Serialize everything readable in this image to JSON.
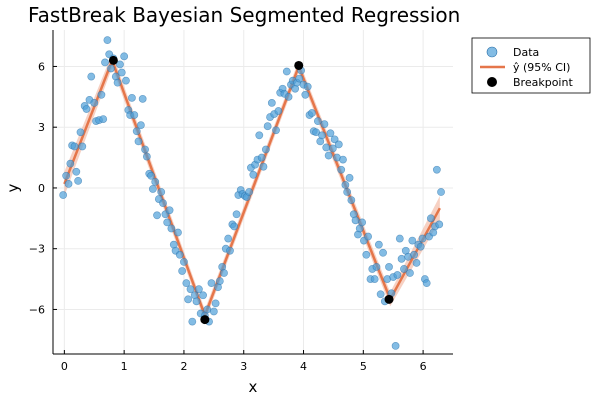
{
  "colors": {
    "data_points": "#4e9fd8",
    "fit_line": "#e5764a",
    "ci_band": "#f0ab91",
    "breakpoints": "#000000",
    "grid": "#ebebeb",
    "axis": "#000000"
  },
  "chart_data": {
    "type": "scatter",
    "title": "FastBreak Bayesian Segmented Regression",
    "xlabel": "x",
    "ylabel": "y",
    "xlim": [
      -0.19,
      6.5
    ],
    "ylim": [
      -8.2,
      7.8
    ],
    "xticks": [
      0,
      1,
      2,
      3,
      4,
      5,
      6
    ],
    "yticks": [
      -6,
      -3,
      0,
      3,
      6
    ],
    "xtick_labels": [
      "0",
      "1",
      "2",
      "3",
      "4",
      "5",
      "6"
    ],
    "ytick_labels": [
      "−6",
      "−3",
      "0",
      "3",
      "6"
    ],
    "grid": true,
    "legend_position": "top-right",
    "legend": {
      "data": "Data",
      "fit": "ŷ (95% CI)",
      "breakpoint": "Breakpoint"
    },
    "scatter": {
      "name": "Data",
      "points": [
        [
          -0.02,
          -0.35
        ],
        [
          0.03,
          0.6
        ],
        [
          0.07,
          0.2
        ],
        [
          0.1,
          1.2
        ],
        [
          0.13,
          2.1
        ],
        [
          0.17,
          2.05
        ],
        [
          0.2,
          0.8
        ],
        [
          0.23,
          0.35
        ],
        [
          0.27,
          2.75
        ],
        [
          0.3,
          2.05
        ],
        [
          0.34,
          4.05
        ],
        [
          0.37,
          3.9
        ],
        [
          0.42,
          4.35
        ],
        [
          0.45,
          5.5
        ],
        [
          0.5,
          4.2
        ],
        [
          0.53,
          3.3
        ],
        [
          0.58,
          3.35
        ],
        [
          0.62,
          4.6
        ],
        [
          0.65,
          3.4
        ],
        [
          0.68,
          6.2
        ],
        [
          0.72,
          7.3
        ],
        [
          0.75,
          6.6
        ],
        [
          0.78,
          5.9
        ],
        [
          0.82,
          6.4
        ],
        [
          0.86,
          5.5
        ],
        [
          0.89,
          5.2
        ],
        [
          0.93,
          6.1
        ],
        [
          0.96,
          5.7
        ],
        [
          1.0,
          6.5
        ],
        [
          1.03,
          5.3
        ],
        [
          1.07,
          3.85
        ],
        [
          1.1,
          3.6
        ],
        [
          1.13,
          4.45
        ],
        [
          1.17,
          3.6
        ],
        [
          1.21,
          2.8
        ],
        [
          1.24,
          2.3
        ],
        [
          1.28,
          3.1
        ],
        [
          1.31,
          4.4
        ],
        [
          1.35,
          1.9
        ],
        [
          1.38,
          1.55
        ],
        [
          1.42,
          0.7
        ],
        [
          1.45,
          0.6
        ],
        [
          1.48,
          -0.05
        ],
        [
          1.52,
          0.3
        ],
        [
          1.55,
          -1.35
        ],
        [
          1.58,
          -0.55
        ],
        [
          1.62,
          -0.2
        ],
        [
          1.65,
          -0.75
        ],
        [
          1.69,
          -1.3
        ],
        [
          1.72,
          -1.7
        ],
        [
          1.76,
          -1.1
        ],
        [
          1.79,
          -2.0
        ],
        [
          1.83,
          -2.8
        ],
        [
          1.86,
          -3.1
        ],
        [
          1.9,
          -2.2
        ],
        [
          1.93,
          -3.3
        ],
        [
          1.97,
          -4.1
        ],
        [
          2.0,
          -3.65
        ],
        [
          2.04,
          -4.7
        ],
        [
          2.07,
          -5.5
        ],
        [
          2.11,
          -5.0
        ],
        [
          2.14,
          -6.6
        ],
        [
          2.18,
          -5.3
        ],
        [
          2.21,
          -5.6
        ],
        [
          2.25,
          -5.0
        ],
        [
          2.28,
          -6.2
        ],
        [
          2.32,
          -5.3
        ],
        [
          2.35,
          -6.3
        ],
        [
          2.39,
          -6.0
        ],
        [
          2.42,
          -6.6
        ],
        [
          2.46,
          -4.7
        ],
        [
          2.5,
          -6.1
        ],
        [
          2.53,
          -5.7
        ],
        [
          2.57,
          -4.9
        ],
        [
          2.6,
          -4.6
        ],
        [
          2.64,
          -3.9
        ],
        [
          2.67,
          -4.2
        ],
        [
          2.7,
          -3.0
        ],
        [
          2.74,
          -2.5
        ],
        [
          2.77,
          -3.1
        ],
        [
          2.81,
          -1.8
        ],
        [
          2.84,
          -1.9
        ],
        [
          2.88,
          -1.3
        ],
        [
          2.91,
          -0.35
        ],
        [
          2.95,
          -0.1
        ],
        [
          2.98,
          -0.3
        ],
        [
          3.02,
          -0.4
        ],
        [
          3.05,
          -0.45
        ],
        [
          3.09,
          -0.2
        ],
        [
          3.12,
          1.0
        ],
        [
          3.16,
          0.65
        ],
        [
          3.19,
          1.15
        ],
        [
          3.23,
          1.4
        ],
        [
          3.26,
          2.6
        ],
        [
          3.3,
          1.5
        ],
        [
          3.33,
          1.05
        ],
        [
          3.37,
          1.9
        ],
        [
          3.4,
          3.05
        ],
        [
          3.44,
          3.5
        ],
        [
          3.47,
          4.2
        ],
        [
          3.51,
          3.65
        ],
        [
          3.54,
          2.85
        ],
        [
          3.58,
          3.8
        ],
        [
          3.61,
          4.7
        ],
        [
          3.65,
          4.9
        ],
        [
          3.68,
          4.65
        ],
        [
          3.72,
          5.75
        ],
        [
          3.75,
          4.5
        ],
        [
          3.79,
          5.1
        ],
        [
          3.82,
          5.3
        ],
        [
          3.86,
          4.9
        ],
        [
          3.89,
          5.2
        ],
        [
          3.93,
          5.4
        ],
        [
          3.96,
          5.8
        ],
        [
          4.0,
          5.1
        ],
        [
          4.03,
          4.6
        ],
        [
          4.07,
          5.0
        ],
        [
          4.1,
          3.6
        ],
        [
          4.14,
          3.7
        ],
        [
          4.17,
          2.8
        ],
        [
          4.21,
          2.75
        ],
        [
          4.24,
          3.3
        ],
        [
          4.28,
          2.3
        ],
        [
          4.31,
          2.6
        ],
        [
          4.35,
          3.15
        ],
        [
          4.38,
          2.0
        ],
        [
          4.42,
          1.6
        ],
        [
          4.45,
          2.7
        ],
        [
          4.49,
          1.95
        ],
        [
          4.52,
          2.4
        ],
        [
          4.56,
          1.5
        ],
        [
          4.59,
          2.15
        ],
        [
          4.63,
          0.9
        ],
        [
          4.66,
          1.4
        ],
        [
          4.7,
          0.15
        ],
        [
          4.73,
          -0.2
        ],
        [
          4.77,
          0.5
        ],
        [
          4.8,
          -0.6
        ],
        [
          4.84,
          -1.3
        ],
        [
          4.87,
          -1.6
        ],
        [
          4.91,
          -2.3
        ],
        [
          4.94,
          -2.0
        ],
        [
          4.98,
          -1.7
        ],
        [
          5.01,
          -2.6
        ],
        [
          5.05,
          -3.3
        ],
        [
          5.08,
          -2.4
        ],
        [
          5.12,
          -4.5
        ],
        [
          5.15,
          -4.0
        ],
        [
          5.19,
          -4.5
        ],
        [
          5.22,
          -3.9
        ],
        [
          5.26,
          -2.8
        ],
        [
          5.29,
          -5.25
        ],
        [
          5.33,
          -3.2
        ],
        [
          5.36,
          -5.6
        ],
        [
          5.4,
          -4.5
        ],
        [
          5.43,
          -3.9
        ],
        [
          5.47,
          -5.2
        ],
        [
          5.5,
          -4.4
        ],
        [
          5.54,
          -7.8
        ],
        [
          5.57,
          -4.3
        ],
        [
          5.61,
          -2.5
        ],
        [
          5.64,
          -3.5
        ],
        [
          5.68,
          -4.0
        ],
        [
          5.71,
          -3.1
        ],
        [
          5.75,
          -3.4
        ],
        [
          5.78,
          -4.2
        ],
        [
          5.82,
          -2.6
        ],
        [
          5.85,
          -3.3
        ],
        [
          5.89,
          -3.7
        ],
        [
          5.92,
          -2.8
        ],
        [
          5.96,
          -2.9
        ],
        [
          5.99,
          -2.5
        ],
        [
          6.03,
          -4.5
        ],
        [
          6.06,
          -4.7
        ],
        [
          6.1,
          -2.4
        ],
        [
          6.13,
          -1.5
        ],
        [
          6.17,
          -2.2
        ],
        [
          6.2,
          -1.9
        ],
        [
          6.23,
          0.9
        ],
        [
          6.27,
          -1.8
        ],
        [
          6.3,
          -0.2
        ]
      ]
    },
    "fit": {
      "name": "ŷ (95% CI)",
      "x": [
        0.0,
        0.8,
        2.35,
        3.92,
        5.45,
        6.28
      ],
      "y": [
        0.2,
        6.3,
        -6.3,
        6.0,
        -5.5,
        -1.0
      ],
      "ci_halfwidth": [
        0.6,
        0.35,
        0.3,
        0.3,
        0.35,
        0.6
      ]
    },
    "breakpoints": {
      "name": "Breakpoint",
      "points": [
        [
          0.82,
          6.3
        ],
        [
          2.35,
          -6.5
        ],
        [
          3.92,
          6.05
        ],
        [
          5.43,
          -5.5
        ]
      ]
    }
  }
}
